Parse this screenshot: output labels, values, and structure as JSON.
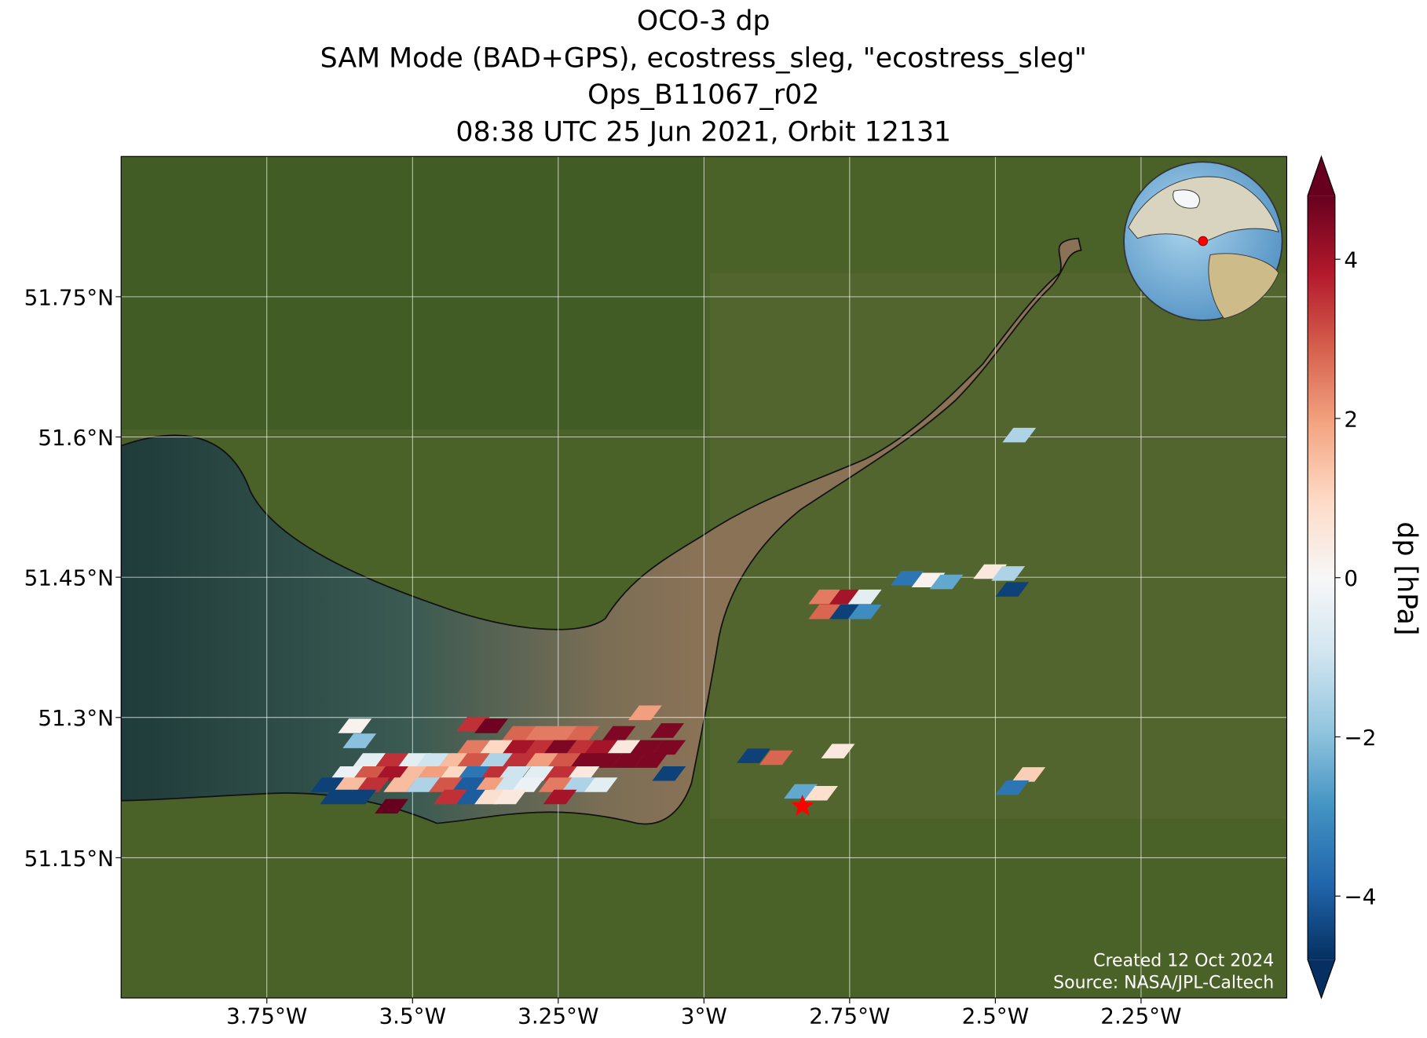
{
  "chart_data": {
    "type": "map",
    "title": [
      "OCO-3 dp",
      "SAM Mode (BAD+GPS), ecostress_sleg, \"ecostress_sleg\"",
      "Ops_B11067_r02",
      "08:38 UTC 25 Jun 2021, Orbit 12131"
    ],
    "xlim": [
      -4.0,
      -2.0
    ],
    "ylim": [
      51.0,
      51.9
    ],
    "xticks": [
      {
        "value": -3.75,
        "label": "3.75°W"
      },
      {
        "value": -3.5,
        "label": "3.5°W"
      },
      {
        "value": -3.25,
        "label": "3.25°W"
      },
      {
        "value": -3.0,
        "label": "3°W"
      },
      {
        "value": -2.75,
        "label": "2.75°W"
      },
      {
        "value": -2.5,
        "label": "2.5°W"
      },
      {
        "value": -2.25,
        "label": "2.25°W"
      }
    ],
    "yticks": [
      {
        "value": 51.15,
        "label": "51.15°N"
      },
      {
        "value": 51.3,
        "label": "51.3°N"
      },
      {
        "value": 51.45,
        "label": "51.45°N"
      },
      {
        "value": 51.6,
        "label": "51.6°N"
      },
      {
        "value": 51.75,
        "label": "51.75°N"
      }
    ],
    "grid": true,
    "colorbar": {
      "label": "dp [hPa]",
      "clim": [
        -4.8,
        4.8
      ],
      "ticks": [
        {
          "value": -4,
          "label": "−4"
        },
        {
          "value": -2,
          "label": "−2"
        },
        0,
        2,
        4
      ]
    },
    "footprints": {
      "lon": [
        -2.459,
        -2.651,
        -2.615,
        -2.584,
        -2.509,
        -2.478,
        -2.471,
        -2.792,
        -2.756,
        -2.724,
        -2.792,
        -2.756,
        -2.724,
        -2.915,
        -2.876,
        -2.77,
        -2.834,
        -2.799,
        -2.443,
        -2.471,
        -3.101,
        -3.063,
        -3.599,
        -3.591,
        -3.396,
        -3.365,
        -3.318,
        -3.279,
        -3.243,
        -3.208,
        -3.146,
        -3.396,
        -3.357,
        -3.318,
        -3.279,
        -3.247,
        -3.208,
        -3.177,
        -3.138,
        -3.099,
        -3.06,
        -3.575,
        -3.536,
        -3.497,
        -3.466,
        -3.427,
        -3.396,
        -3.357,
        -3.318,
        -3.279,
        -3.24,
        -3.201,
        -3.169,
        -3.13,
        -3.091,
        -3.614,
        -3.575,
        -3.536,
        -3.497,
        -3.466,
        -3.427,
        -3.396,
        -3.357,
        -3.326,
        -3.286,
        -3.247,
        -3.208,
        -3.06,
        -3.646,
        -3.607,
        -3.568,
        -3.521,
        -3.482,
        -3.443,
        -3.404,
        -3.365,
        -3.333,
        -3.302,
        -3.255,
        -3.216,
        -3.177,
        -3.63,
        -3.591,
        -3.435,
        -3.396,
        -3.365,
        -3.333,
        -3.247,
        -3.536
      ],
      "lat": [
        51.602,
        51.449,
        51.447,
        51.445,
        51.456,
        51.454,
        51.437,
        51.429,
        51.429,
        51.429,
        51.413,
        51.413,
        51.413,
        51.259,
        51.257,
        51.264,
        51.221,
        51.219,
        51.239,
        51.225,
        51.305,
        51.286,
        51.291,
        51.275,
        51.293,
        51.291,
        51.283,
        51.283,
        51.283,
        51.283,
        51.283,
        51.268,
        51.268,
        51.268,
        51.268,
        51.268,
        51.268,
        51.268,
        51.268,
        51.268,
        51.268,
        51.254,
        51.254,
        51.254,
        51.254,
        51.254,
        51.254,
        51.254,
        51.254,
        51.254,
        51.254,
        51.254,
        51.254,
        51.254,
        51.254,
        51.24,
        51.24,
        51.24,
        51.24,
        51.24,
        51.24,
        51.24,
        51.24,
        51.24,
        51.24,
        51.24,
        51.24,
        51.24,
        51.228,
        51.228,
        51.228,
        51.228,
        51.228,
        51.228,
        51.228,
        51.228,
        51.228,
        51.228,
        51.228,
        51.228,
        51.228,
        51.215,
        51.215,
        51.215,
        51.215,
        51.215,
        51.215,
        51.215,
        51.205
      ],
      "values": [
        -1.5,
        -3.5,
        0.2,
        -2.5,
        0.5,
        -1.5,
        -4.5,
        2.5,
        4.0,
        -0.5,
        2.8,
        -4.5,
        -3.0,
        -4.5,
        2.8,
        0.5,
        -2.5,
        0.8,
        1.2,
        -3.5,
        2.0,
        4.5,
        0.2,
        -2.0,
        3.5,
        4.7,
        2.8,
        2.5,
        2.5,
        2.8,
        4.5,
        2.5,
        1.0,
        4.0,
        3.5,
        4.5,
        3.5,
        4.0,
        0.5,
        4.5,
        4.5,
        -0.5,
        3.5,
        -0.5,
        -1.0,
        1.5,
        3.0,
        -1.5,
        3.5,
        2.0,
        3.0,
        4.5,
        4.5,
        4.5,
        4.5,
        -0.3,
        3.0,
        4.0,
        1.5,
        2.0,
        1.0,
        -3.5,
        3.5,
        -1.0,
        -0.5,
        3.5,
        0.5,
        -4.5,
        -4.5,
        1.5,
        3.5,
        1.5,
        -1.5,
        3.0,
        -4.0,
        2.0,
        -1.0,
        -0.3,
        2.5,
        -1.5,
        -0.5,
        -4.5,
        -4.5,
        3.5,
        -4.0,
        0.8,
        0.5,
        4.0,
        4.8
      ]
    },
    "target": {
      "lon": -2.831,
      "lat": 51.205
    },
    "credits": [
      "Created 12 Oct 2024",
      "Source: NASA/JPL-Caltech"
    ]
  }
}
